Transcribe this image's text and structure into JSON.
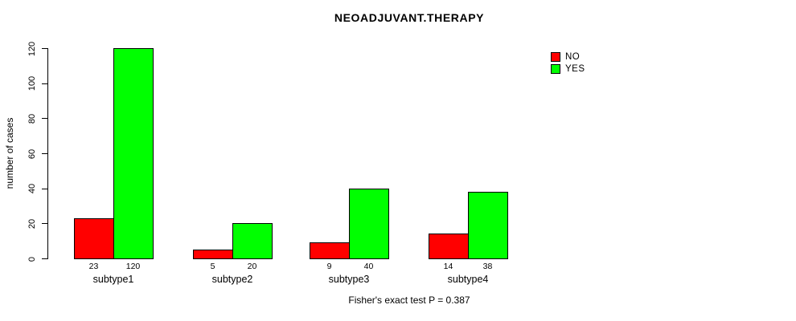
{
  "chart_data": {
    "type": "bar",
    "title": "NEOADJUVANT.THERAPY",
    "ylabel": "number of cases",
    "xlabel": "",
    "categories": [
      "subtype1",
      "subtype2",
      "subtype3",
      "subtype4"
    ],
    "series": [
      {
        "name": "NO",
        "color": "#ff0000",
        "values": [
          23,
          5,
          9,
          14
        ]
      },
      {
        "name": "YES",
        "color": "#00ff00",
        "values": [
          120,
          20,
          40,
          38
        ]
      }
    ],
    "bar_value_labels": [
      [
        "23",
        "120"
      ],
      [
        "5",
        "20"
      ],
      [
        "9",
        "40"
      ],
      [
        "14",
        "38"
      ]
    ],
    "ylim": [
      0,
      120
    ],
    "yticks": [
      0,
      20,
      40,
      60,
      80,
      100,
      120
    ],
    "grid": false,
    "legend": {
      "position": "top-right",
      "entries": [
        {
          "label": "NO",
          "color": "#ff0000"
        },
        {
          "label": "YES",
          "color": "#00ff00"
        }
      ]
    },
    "annotation": "Fisher's exact test P = 0.387"
  }
}
